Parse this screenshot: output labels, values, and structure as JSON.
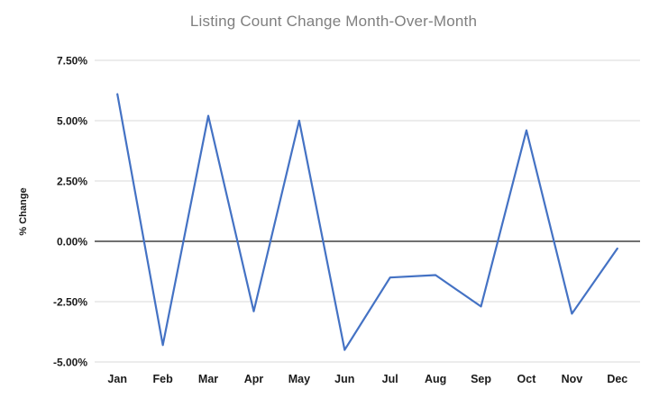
{
  "page": {
    "background": "#ffffff"
  },
  "chart_data": {
    "type": "line",
    "title": "Listing Count Change Month-Over-Month",
    "xlabel": "",
    "ylabel": "% Change",
    "categories": [
      "Jan",
      "Feb",
      "Mar",
      "Apr",
      "May",
      "Jun",
      "Jul",
      "Aug",
      "Sep",
      "Oct",
      "Nov",
      "Dec"
    ],
    "values": [
      6.1,
      -4.3,
      5.2,
      -2.9,
      5.0,
      -4.5,
      -1.5,
      -1.4,
      -2.7,
      4.6,
      -3.0,
      -0.3
    ],
    "ylim": [
      -5,
      7.5
    ],
    "yticks": [
      7.5,
      5,
      2.5,
      0,
      -2.5,
      -5
    ],
    "ytick_labels": [
      "7.50%",
      "5.00%",
      "2.50%",
      "0.00%",
      "-2.50%",
      "-5.00%"
    ],
    "grid": true,
    "legend": "none",
    "colors": {
      "line": "#4472C4",
      "gridline": "#d9d9d9",
      "zero_line": "#1a1a1a",
      "title_text": "#7f7f7f",
      "tick_text": "#1a1a1a"
    }
  }
}
